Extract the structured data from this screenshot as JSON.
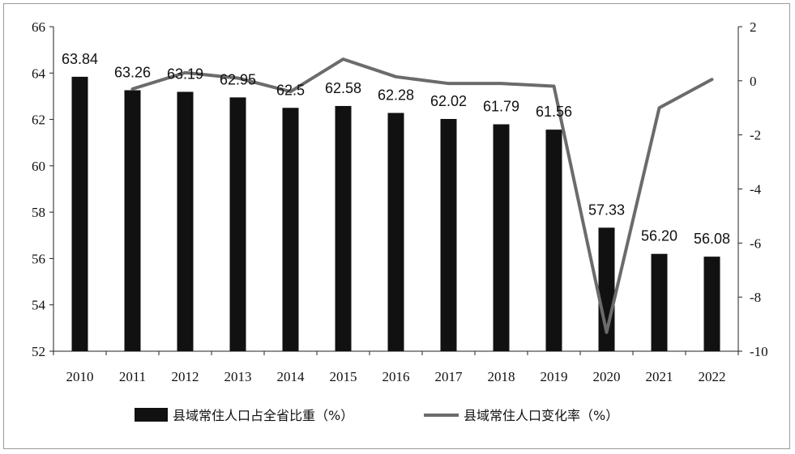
{
  "chart_data": {
    "type": "bar+line",
    "categories": [
      "2010",
      "2011",
      "2012",
      "2013",
      "2014",
      "2015",
      "2016",
      "2017",
      "2018",
      "2019",
      "2020",
      "2021",
      "2022"
    ],
    "series": [
      {
        "name": "县域常住人口占全省比重（%）",
        "kind": "bar",
        "axis": "left",
        "values": [
          63.84,
          63.26,
          63.19,
          62.95,
          62.5,
          62.58,
          62.28,
          62.02,
          61.79,
          61.56,
          57.33,
          56.2,
          56.08
        ],
        "labels": [
          "63.84",
          "63.26",
          "63.19",
          "62.95",
          "62.5",
          "62.58",
          "62.28",
          "62.02",
          "61.79",
          "61.56",
          "57.33",
          "56.20",
          "56.08"
        ],
        "color": "#111111"
      },
      {
        "name": "县域常住人口变化率（%）",
        "kind": "line",
        "axis": "right",
        "values": [
          null,
          -0.3,
          0.3,
          0.1,
          -0.4,
          0.8,
          0.15,
          -0.1,
          -0.1,
          -0.2,
          -9.3,
          -1.0,
          0.05
        ],
        "color": "#6b6b6b"
      }
    ],
    "left_axis": {
      "ylim": [
        52,
        66
      ],
      "ticks": [
        "52",
        "54",
        "56",
        "58",
        "60",
        "62",
        "64",
        "66"
      ]
    },
    "right_axis": {
      "ylim": [
        -10,
        2
      ],
      "ticks": [
        "-10",
        "-8",
        "-6",
        "-4",
        "-2",
        "0",
        "2"
      ]
    },
    "legend_position": "bottom",
    "grid": false
  }
}
